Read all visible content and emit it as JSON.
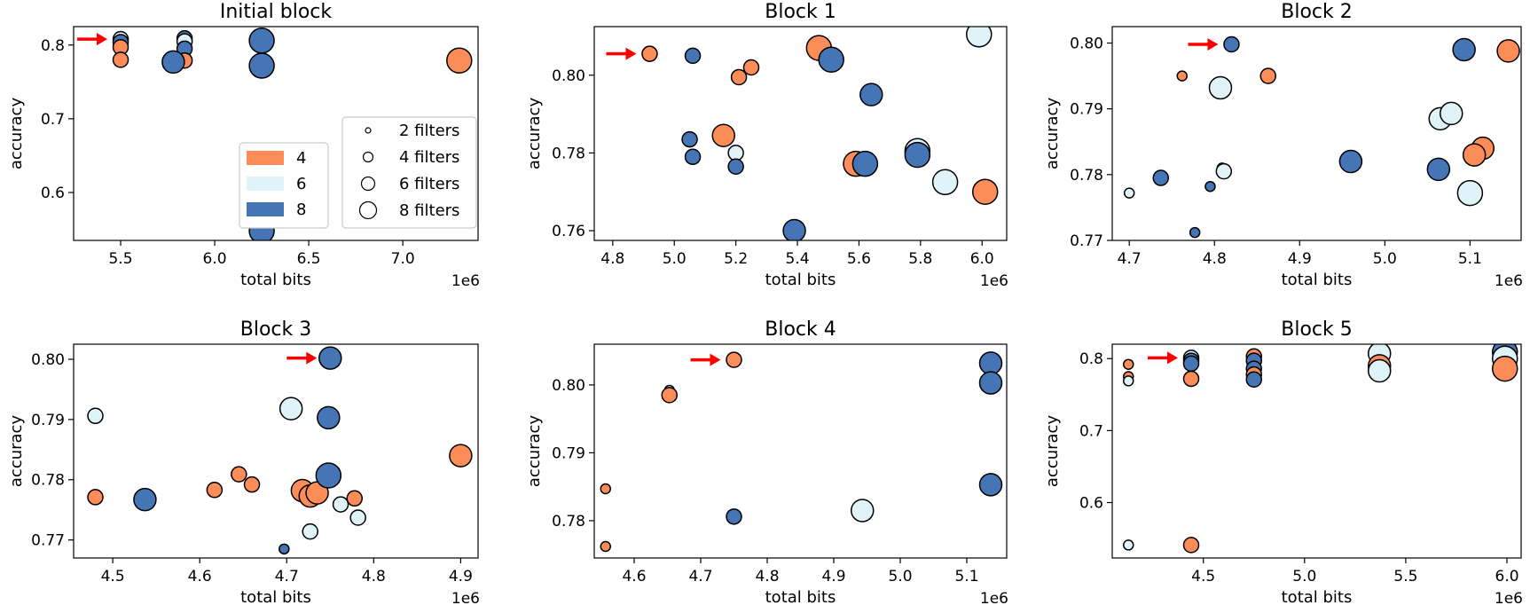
{
  "figure": {
    "x_multiplier": "1e6"
  },
  "colors": {
    "4": "#fc8d59",
    "6": "#e0f3f8",
    "8": "#4575b4",
    "edge": "#000000",
    "arrow": "#ff0000"
  },
  "legend": {
    "color_entries": [
      {
        "label": "4",
        "color": "#fc8d59"
      },
      {
        "label": "6",
        "color": "#e0f3f8"
      },
      {
        "label": "8",
        "color": "#4575b4"
      }
    ],
    "size_entries": [
      {
        "label": "2 filters",
        "filters": 2
      },
      {
        "label": "4 filters",
        "filters": 4
      },
      {
        "label": "6 filters",
        "filters": 6
      },
      {
        "label": "8 filters",
        "filters": 8
      }
    ]
  },
  "chart_data": [
    {
      "type": "scatter",
      "title": "Initial block",
      "xlabel": "total bits",
      "ylabel": "accuracy",
      "xlim": [
        5.25,
        7.4
      ],
      "ylim": [
        0.535,
        0.825
      ],
      "xticks": [
        5.5,
        6.0,
        6.5,
        7.0
      ],
      "xtick_labels": [
        "5.5",
        "6.0",
        "6.5",
        "7.0"
      ],
      "yticks": [
        0.6,
        0.7,
        0.8
      ],
      "ytick_labels": [
        "0.6",
        "0.7",
        "0.8"
      ],
      "arrow": {
        "x": 5.5,
        "y": 0.808
      },
      "points": [
        {
          "x": 5.5,
          "y": 0.808,
          "bits": 6,
          "filters": 4
        },
        {
          "x": 5.5,
          "y": 0.804,
          "bits": 8,
          "filters": 4
        },
        {
          "x": 5.5,
          "y": 0.797,
          "bits": 4,
          "filters": 4
        },
        {
          "x": 5.5,
          "y": 0.78,
          "bits": 4,
          "filters": 4
        },
        {
          "x": 5.84,
          "y": 0.809,
          "bits": 8,
          "filters": 4
        },
        {
          "x": 5.84,
          "y": 0.805,
          "bits": 6,
          "filters": 4
        },
        {
          "x": 5.84,
          "y": 0.795,
          "bits": 8,
          "filters": 4
        },
        {
          "x": 5.84,
          "y": 0.779,
          "bits": 4,
          "filters": 4
        },
        {
          "x": 5.78,
          "y": 0.777,
          "bits": 8,
          "filters": 6
        },
        {
          "x": 6.25,
          "y": 0.806,
          "bits": 8,
          "filters": 8
        },
        {
          "x": 6.25,
          "y": 0.772,
          "bits": 8,
          "filters": 8
        },
        {
          "x": 6.25,
          "y": 0.548,
          "bits": 8,
          "filters": 8
        },
        {
          "x": 7.3,
          "y": 0.779,
          "bits": 4,
          "filters": 8
        }
      ]
    },
    {
      "type": "scatter",
      "title": "Block 1",
      "xlabel": "total bits",
      "ylabel": "accuracy",
      "xlim": [
        4.74,
        6.08
      ],
      "ylim": [
        0.7575,
        0.8125
      ],
      "xticks": [
        4.8,
        5.0,
        5.2,
        5.4,
        5.6,
        5.8,
        6.0
      ],
      "xtick_labels": [
        "4.8",
        "5.0",
        "5.2",
        "5.4",
        "5.6",
        "5.8",
        "6.0"
      ],
      "yticks": [
        0.76,
        0.78,
        0.8
      ],
      "ytick_labels": [
        "0.76",
        "0.78",
        "0.80"
      ],
      "arrow": {
        "x": 4.92,
        "y": 0.8055
      },
      "points": [
        {
          "x": 4.92,
          "y": 0.8055,
          "bits": 4,
          "filters": 4
        },
        {
          "x": 5.06,
          "y": 0.805,
          "bits": 8,
          "filters": 4
        },
        {
          "x": 5.21,
          "y": 0.7995,
          "bits": 4,
          "filters": 4
        },
        {
          "x": 5.25,
          "y": 0.802,
          "bits": 4,
          "filters": 4
        },
        {
          "x": 5.05,
          "y": 0.7835,
          "bits": 8,
          "filters": 4
        },
        {
          "x": 5.06,
          "y": 0.779,
          "bits": 8,
          "filters": 4
        },
        {
          "x": 5.16,
          "y": 0.7845,
          "bits": 4,
          "filters": 6
        },
        {
          "x": 5.2,
          "y": 0.78,
          "bits": 6,
          "filters": 4
        },
        {
          "x": 5.2,
          "y": 0.7765,
          "bits": 8,
          "filters": 4
        },
        {
          "x": 5.47,
          "y": 0.807,
          "bits": 4,
          "filters": 8
        },
        {
          "x": 5.51,
          "y": 0.804,
          "bits": 8,
          "filters": 8
        },
        {
          "x": 5.64,
          "y": 0.795,
          "bits": 8,
          "filters": 6
        },
        {
          "x": 5.39,
          "y": 0.76,
          "bits": 8,
          "filters": 6
        },
        {
          "x": 5.59,
          "y": 0.7772,
          "bits": 4,
          "filters": 8
        },
        {
          "x": 5.62,
          "y": 0.7772,
          "bits": 8,
          "filters": 8
        },
        {
          "x": 5.79,
          "y": 0.7805,
          "bits": 6,
          "filters": 8
        },
        {
          "x": 5.79,
          "y": 0.7795,
          "bits": 8,
          "filters": 8
        },
        {
          "x": 5.88,
          "y": 0.7725,
          "bits": 6,
          "filters": 8
        },
        {
          "x": 5.99,
          "y": 0.8105,
          "bits": 6,
          "filters": 8
        },
        {
          "x": 6.01,
          "y": 0.77,
          "bits": 4,
          "filters": 8
        }
      ]
    },
    {
      "type": "scatter",
      "title": "Block 2",
      "xlabel": "total bits",
      "ylabel": "accuracy",
      "xlim": [
        4.68,
        5.16
      ],
      "ylim": [
        0.77,
        0.8025
      ],
      "xticks": [
        4.7,
        4.8,
        4.9,
        5.0,
        5.1
      ],
      "xtick_labels": [
        "4.7",
        "4.8",
        "4.9",
        "5.0",
        "5.1"
      ],
      "yticks": [
        0.77,
        0.78,
        0.79,
        0.8
      ],
      "ytick_labels": [
        "0.77",
        "0.78",
        "0.79",
        "0.80"
      ],
      "arrow": {
        "x": 4.82,
        "y": 0.7998
      },
      "points": [
        {
          "x": 4.82,
          "y": 0.7998,
          "bits": 8,
          "filters": 4
        },
        {
          "x": 4.762,
          "y": 0.795,
          "bits": 4,
          "filters": 2
        },
        {
          "x": 4.863,
          "y": 0.795,
          "bits": 4,
          "filters": 4
        },
        {
          "x": 4.807,
          "y": 0.7932,
          "bits": 6,
          "filters": 6
        },
        {
          "x": 4.7,
          "y": 0.7772,
          "bits": 6,
          "filters": 2
        },
        {
          "x": 4.737,
          "y": 0.7795,
          "bits": 8,
          "filters": 4
        },
        {
          "x": 4.795,
          "y": 0.7782,
          "bits": 8,
          "filters": 2
        },
        {
          "x": 4.809,
          "y": 0.781,
          "bits": 6,
          "filters": 2
        },
        {
          "x": 4.811,
          "y": 0.7805,
          "bits": 6,
          "filters": 4
        },
        {
          "x": 4.777,
          "y": 0.7712,
          "bits": 8,
          "filters": 2
        },
        {
          "x": 4.96,
          "y": 0.782,
          "bits": 8,
          "filters": 6
        },
        {
          "x": 5.063,
          "y": 0.7808,
          "bits": 8,
          "filters": 6
        },
        {
          "x": 5.065,
          "y": 0.7885,
          "bits": 6,
          "filters": 6
        },
        {
          "x": 5.078,
          "y": 0.7893,
          "bits": 6,
          "filters": 6
        },
        {
          "x": 5.093,
          "y": 0.799,
          "bits": 8,
          "filters": 6
        },
        {
          "x": 5.1,
          "y": 0.7772,
          "bits": 6,
          "filters": 8
        },
        {
          "x": 5.115,
          "y": 0.784,
          "bits": 4,
          "filters": 6
        },
        {
          "x": 5.105,
          "y": 0.783,
          "bits": 4,
          "filters": 6
        },
        {
          "x": 5.145,
          "y": 0.7988,
          "bits": 4,
          "filters": 6
        }
      ]
    },
    {
      "type": "scatter",
      "title": "Block 3",
      "xlabel": "total bits",
      "ylabel": "accuracy",
      "xlim": [
        4.455,
        4.92
      ],
      "ylim": [
        0.767,
        0.8025
      ],
      "xticks": [
        4.5,
        4.6,
        4.7,
        4.8,
        4.9
      ],
      "xtick_labels": [
        "4.5",
        "4.6",
        "4.7",
        "4.8",
        "4.9"
      ],
      "yticks": [
        0.77,
        0.78,
        0.79,
        0.8
      ],
      "ytick_labels": [
        "0.77",
        "0.78",
        "0.79",
        "0.80"
      ],
      "arrow": {
        "x": 4.75,
        "y": 0.8002
      },
      "points": [
        {
          "x": 4.75,
          "y": 0.8002,
          "bits": 8,
          "filters": 6
        },
        {
          "x": 4.48,
          "y": 0.7906,
          "bits": 6,
          "filters": 4
        },
        {
          "x": 4.48,
          "y": 0.7771,
          "bits": 4,
          "filters": 4
        },
        {
          "x": 4.537,
          "y": 0.7767,
          "bits": 8,
          "filters": 6
        },
        {
          "x": 4.617,
          "y": 0.7783,
          "bits": 4,
          "filters": 4
        },
        {
          "x": 4.645,
          "y": 0.7809,
          "bits": 4,
          "filters": 4
        },
        {
          "x": 4.66,
          "y": 0.7792,
          "bits": 4,
          "filters": 4
        },
        {
          "x": 4.697,
          "y": 0.7685,
          "bits": 8,
          "filters": 2
        },
        {
          "x": 4.705,
          "y": 0.7918,
          "bits": 6,
          "filters": 6
        },
        {
          "x": 4.718,
          "y": 0.7782,
          "bits": 4,
          "filters": 6
        },
        {
          "x": 4.727,
          "y": 0.7773,
          "bits": 4,
          "filters": 6
        },
        {
          "x": 4.727,
          "y": 0.7714,
          "bits": 6,
          "filters": 4
        },
        {
          "x": 4.735,
          "y": 0.7778,
          "bits": 4,
          "filters": 6
        },
        {
          "x": 4.748,
          "y": 0.7903,
          "bits": 8,
          "filters": 6
        },
        {
          "x": 4.748,
          "y": 0.7807,
          "bits": 8,
          "filters": 8
        },
        {
          "x": 4.762,
          "y": 0.7759,
          "bits": 6,
          "filters": 4
        },
        {
          "x": 4.778,
          "y": 0.7769,
          "bits": 4,
          "filters": 4
        },
        {
          "x": 4.782,
          "y": 0.7737,
          "bits": 6,
          "filters": 4
        },
        {
          "x": 4.9,
          "y": 0.784,
          "bits": 4,
          "filters": 6
        }
      ]
    },
    {
      "type": "scatter",
      "title": "Block 4",
      "xlabel": "total bits",
      "ylabel": "accuracy",
      "xlim": [
        4.54,
        5.16
      ],
      "ylim": [
        0.7745,
        0.806
      ],
      "xticks": [
        4.6,
        4.7,
        4.8,
        4.9,
        5.0,
        5.1
      ],
      "xtick_labels": [
        "4.6",
        "4.7",
        "4.8",
        "4.9",
        "5.0",
        "5.1"
      ],
      "yticks": [
        0.78,
        0.79,
        0.8
      ],
      "ytick_labels": [
        "0.78",
        "0.79",
        "0.80"
      ],
      "arrow": {
        "x": 4.75,
        "y": 0.8037
      },
      "points": [
        {
          "x": 4.75,
          "y": 0.8037,
          "bits": 4,
          "filters": 4
        },
        {
          "x": 4.653,
          "y": 0.7992,
          "bits": 6,
          "filters": 2
        },
        {
          "x": 4.653,
          "y": 0.7985,
          "bits": 4,
          "filters": 4
        },
        {
          "x": 4.557,
          "y": 0.7847,
          "bits": 4,
          "filters": 2
        },
        {
          "x": 4.557,
          "y": 0.7762,
          "bits": 4,
          "filters": 2
        },
        {
          "x": 4.75,
          "y": 0.7806,
          "bits": 8,
          "filters": 4
        },
        {
          "x": 4.943,
          "y": 0.7815,
          "bits": 6,
          "filters": 6
        },
        {
          "x": 5.136,
          "y": 0.8032,
          "bits": 8,
          "filters": 6
        },
        {
          "x": 5.136,
          "y": 0.8003,
          "bits": 8,
          "filters": 6
        },
        {
          "x": 5.136,
          "y": 0.7853,
          "bits": 8,
          "filters": 6
        }
      ]
    },
    {
      "type": "scatter",
      "title": "Block 5",
      "xlabel": "total bits",
      "ylabel": "accuracy",
      "xlim": [
        4.05,
        6.07
      ],
      "ylim": [
        0.523,
        0.82
      ],
      "xticks": [
        4.5,
        5.0,
        5.5,
        6.0
      ],
      "xtick_labels": [
        "4.5",
        "5.0",
        "5.5",
        "6.0"
      ],
      "yticks": [
        0.6,
        0.7,
        0.8
      ],
      "ytick_labels": [
        "0.6",
        "0.7",
        "0.8"
      ],
      "arrow": {
        "x": 4.44,
        "y": 0.801
      },
      "points": [
        {
          "x": 4.13,
          "y": 0.792,
          "bits": 4,
          "filters": 2
        },
        {
          "x": 4.13,
          "y": 0.775,
          "bits": 4,
          "filters": 2
        },
        {
          "x": 4.13,
          "y": 0.769,
          "bits": 6,
          "filters": 2
        },
        {
          "x": 4.13,
          "y": 0.541,
          "bits": 6,
          "filters": 2
        },
        {
          "x": 4.44,
          "y": 0.801,
          "bits": 6,
          "filters": 4
        },
        {
          "x": 4.44,
          "y": 0.797,
          "bits": 8,
          "filters": 4
        },
        {
          "x": 4.44,
          "y": 0.793,
          "bits": 8,
          "filters": 4
        },
        {
          "x": 4.44,
          "y": 0.772,
          "bits": 4,
          "filters": 4
        },
        {
          "x": 4.44,
          "y": 0.541,
          "bits": 4,
          "filters": 4
        },
        {
          "x": 4.75,
          "y": 0.803,
          "bits": 4,
          "filters": 4
        },
        {
          "x": 4.75,
          "y": 0.797,
          "bits": 8,
          "filters": 4
        },
        {
          "x": 4.75,
          "y": 0.786,
          "bits": 8,
          "filters": 4
        },
        {
          "x": 4.75,
          "y": 0.778,
          "bits": 4,
          "filters": 4
        },
        {
          "x": 4.75,
          "y": 0.771,
          "bits": 8,
          "filters": 4
        },
        {
          "x": 5.37,
          "y": 0.807,
          "bits": 6,
          "filters": 6
        },
        {
          "x": 5.37,
          "y": 0.79,
          "bits": 4,
          "filters": 6
        },
        {
          "x": 5.37,
          "y": 0.783,
          "bits": 6,
          "filters": 6
        },
        {
          "x": 5.99,
          "y": 0.809,
          "bits": 8,
          "filters": 8
        },
        {
          "x": 5.99,
          "y": 0.8,
          "bits": 6,
          "filters": 8
        },
        {
          "x": 5.99,
          "y": 0.786,
          "bits": 4,
          "filters": 8
        }
      ]
    }
  ]
}
